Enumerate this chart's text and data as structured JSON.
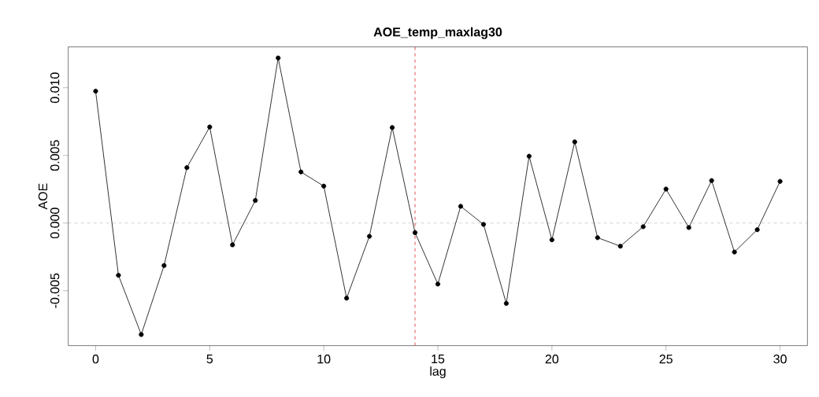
{
  "chart_data": {
    "type": "line",
    "title": "AOE_temp_maxlag30",
    "xlabel": "lag",
    "ylabel": "AOE",
    "x": [
      0,
      1,
      2,
      3,
      4,
      5,
      6,
      7,
      8,
      9,
      10,
      11,
      12,
      13,
      14,
      15,
      16,
      17,
      18,
      19,
      20,
      21,
      22,
      23,
      24,
      25,
      26,
      27,
      28,
      29,
      30
    ],
    "series": [
      {
        "color": "#000000",
        "values": [
          0.00975,
          -0.00386,
          -0.00824,
          -0.00314,
          0.0041,
          0.0071,
          -0.00161,
          0.00167,
          0.0122,
          0.00378,
          0.00273,
          -0.00555,
          -0.00098,
          0.00706,
          -0.00071,
          -0.00451,
          0.00124,
          -0.0001,
          -0.00594,
          0.00494,
          -0.00124,
          0.006,
          -0.00108,
          -0.00171,
          -0.00027,
          0.00251,
          -0.00033,
          0.00314,
          -0.00214,
          -0.00049,
          0.00308
        ]
      }
    ],
    "xlim": [
      -1.2,
      31.2
    ],
    "ylim": [
      -0.00906,
      0.01302
    ],
    "xticks": [
      0,
      5,
      10,
      15,
      20,
      25,
      30
    ],
    "yticks": [
      {
        "value": -0.005,
        "label": "-0.005"
      },
      {
        "value": 0,
        "label": "0.000"
      },
      {
        "value": 0.005,
        "label": "0.005"
      },
      {
        "value": 0.01,
        "label": "0.010"
      }
    ],
    "ref_lines": [
      {
        "axis": "y",
        "value": 0,
        "color": "#c8c8c8",
        "line_style": "dashed"
      },
      {
        "axis": "x",
        "value": 14,
        "color": "#d62728",
        "line_style": "dashed"
      }
    ],
    "marker": "circle",
    "line_style": "solid",
    "grid": false
  }
}
